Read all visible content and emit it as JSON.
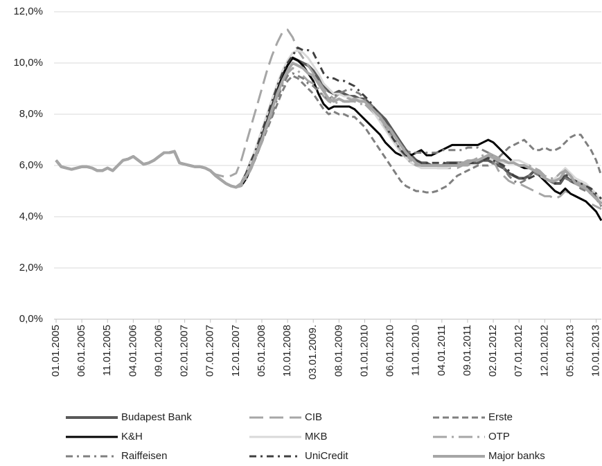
{
  "chart_data": {
    "type": "line",
    "categories": [
      "01.01.2005",
      null,
      null,
      null,
      null,
      "06.01.2005",
      null,
      null,
      null,
      null,
      "11.01.2005",
      null,
      null,
      null,
      null,
      "04.01.2006",
      null,
      null,
      null,
      null,
      "09.01.2006",
      null,
      null,
      null,
      null,
      "02.01.2007",
      null,
      null,
      null,
      null,
      "07.01.2007",
      null,
      null,
      null,
      null,
      "12.01.2007",
      null,
      null,
      null,
      null,
      "05.01.2008",
      null,
      null,
      null,
      null,
      "10.01.2008",
      null,
      null,
      null,
      null,
      "03.01.2009.",
      null,
      null,
      null,
      null,
      "08.01.2009",
      null,
      null,
      null,
      null,
      "01.01.2010",
      null,
      null,
      null,
      null,
      "06.01.2010",
      null,
      null,
      null,
      null,
      "11.01.2010",
      null,
      null,
      null,
      null,
      "04.01.2011",
      null,
      null,
      null,
      null,
      "09.01.2011",
      null,
      null,
      null,
      null,
      "02.01.2012",
      null,
      null,
      null,
      null,
      "07.01.2012",
      null,
      null,
      null,
      null,
      "12.01.2012",
      null,
      null,
      null,
      null,
      "05.01.2013",
      null,
      null,
      null,
      null,
      "10.01.2013",
      null
    ],
    "ylim": [
      0,
      12
    ],
    "yticks": [
      {
        "value": 0,
        "label": "0,0%"
      },
      {
        "value": 2,
        "label": "2,0%"
      },
      {
        "value": 4,
        "label": "4,0%"
      },
      {
        "value": 6,
        "label": "6,0%"
      },
      {
        "value": 8,
        "label": "8,0%"
      },
      {
        "value": 10,
        "label": "10,0%"
      },
      {
        "value": 12,
        "label": "12,0%"
      }
    ],
    "grid": true,
    "legend": "bottom",
    "series": [
      {
        "name": "Budapest Bank",
        "color": "#595959",
        "dash": "solid",
        "width": 4,
        "values": [
          6.2,
          5.95,
          5.9,
          5.85,
          5.9,
          5.95,
          5.95,
          5.9,
          5.8,
          5.8,
          5.9,
          5.8,
          6.0,
          6.2,
          6.25,
          6.35,
          6.2,
          6.05,
          6.1,
          6.2,
          6.35,
          6.5,
          6.5,
          6.55,
          6.1,
          6.05,
          6.0,
          5.95,
          5.95,
          5.9,
          5.8,
          5.6,
          5.45,
          5.3,
          5.2,
          5.15,
          5.3,
          5.7,
          6.2,
          6.7,
          7.3,
          7.9,
          8.5,
          9.1,
          9.6,
          10.0,
          10.2,
          10.1,
          10.0,
          9.9,
          9.7,
          9.4,
          9.1,
          8.9,
          8.8,
          8.9,
          8.8,
          8.7,
          8.7,
          8.6,
          8.6,
          8.4,
          8.2,
          8.0,
          7.8,
          7.5,
          7.2,
          6.9,
          6.6,
          6.4,
          6.2,
          6.1,
          6.1,
          6.0,
          6.0,
          6.0,
          6.1,
          6.1,
          6.1,
          6.1,
          6.1,
          6.1,
          6.1,
          6.2,
          6.2,
          6.1,
          6.0,
          5.9,
          5.7,
          5.6,
          5.5,
          5.5,
          5.6,
          5.8,
          5.7,
          5.5,
          5.4,
          5.3,
          5.3,
          5.6,
          5.4,
          5.3,
          5.2,
          5.1,
          5.0,
          4.8,
          4.5
        ]
      },
      {
        "name": "CIB",
        "color": "#a6a6a6",
        "dash": "long-dash",
        "width": 3,
        "values": [
          6.2,
          5.95,
          5.9,
          5.85,
          5.9,
          5.95,
          5.95,
          5.9,
          5.8,
          5.8,
          5.9,
          5.8,
          6.0,
          6.2,
          6.25,
          6.35,
          6.2,
          6.05,
          6.1,
          6.2,
          6.35,
          6.5,
          6.5,
          6.55,
          6.1,
          6.05,
          6.0,
          5.95,
          5.95,
          5.9,
          5.8,
          5.65,
          5.6,
          5.55,
          5.6,
          5.7,
          6.2,
          6.9,
          7.6,
          8.3,
          9.0,
          9.7,
          10.3,
          10.8,
          11.2,
          11.3,
          11.0,
          10.5,
          10.2,
          9.9,
          9.6,
          9.3,
          9.0,
          8.8,
          8.6,
          8.8,
          8.7,
          8.6,
          8.6,
          8.5,
          8.4,
          8.2,
          8.0,
          7.8,
          7.5,
          7.2,
          6.9,
          6.6,
          6.4,
          6.2,
          6.1,
          6.0,
          6.0,
          6.0,
          5.9,
          5.9,
          5.9,
          5.9,
          5.9,
          6.0,
          6.0,
          6.1,
          6.2,
          6.3,
          6.4,
          6.2,
          5.8,
          5.6,
          5.4,
          5.3,
          5.3,
          5.2,
          5.1,
          5.0,
          4.9,
          4.8,
          4.8,
          4.7,
          4.8,
          5.0,
          4.9,
          4.8,
          4.7,
          4.6,
          4.5,
          4.4,
          4.3
        ]
      },
      {
        "name": "Erste",
        "color": "#7f7f7f",
        "dash": "dash",
        "width": 3,
        "values": [
          6.2,
          5.95,
          5.9,
          5.85,
          5.9,
          5.95,
          5.95,
          5.9,
          5.8,
          5.8,
          5.9,
          5.8,
          6.0,
          6.2,
          6.25,
          6.35,
          6.2,
          6.05,
          6.1,
          6.2,
          6.35,
          6.5,
          6.5,
          6.55,
          6.1,
          6.05,
          6.0,
          5.95,
          5.95,
          5.9,
          5.8,
          5.6,
          5.45,
          5.3,
          5.2,
          5.15,
          5.2,
          5.5,
          5.9,
          6.4,
          6.9,
          7.4,
          7.9,
          8.4,
          8.9,
          9.3,
          9.5,
          9.4,
          9.2,
          9.0,
          8.8,
          8.5,
          8.2,
          8.0,
          8.1,
          8.0,
          8.0,
          7.9,
          7.9,
          7.7,
          7.5,
          7.2,
          6.9,
          6.6,
          6.3,
          6.0,
          5.7,
          5.4,
          5.2,
          5.1,
          5.0,
          5.0,
          4.95,
          4.95,
          5.0,
          5.1,
          5.2,
          5.4,
          5.6,
          5.7,
          5.8,
          5.9,
          6.0,
          6.0,
          6.0,
          6.1,
          6.3,
          6.5,
          6.7,
          6.8,
          6.9,
          7.0,
          6.8,
          6.6,
          6.6,
          6.7,
          6.6,
          6.6,
          6.7,
          6.9,
          7.1,
          7.2,
          7.2,
          6.9,
          6.6,
          6.2,
          5.6
        ]
      },
      {
        "name": "K&H",
        "color": "#000000",
        "dash": "solid",
        "width": 3,
        "values": [
          6.2,
          5.95,
          5.9,
          5.85,
          5.9,
          5.95,
          5.95,
          5.9,
          5.8,
          5.8,
          5.9,
          5.8,
          6.0,
          6.2,
          6.25,
          6.35,
          6.2,
          6.05,
          6.1,
          6.2,
          6.35,
          6.5,
          6.5,
          6.55,
          6.1,
          6.05,
          6.0,
          5.95,
          5.95,
          5.9,
          5.8,
          5.6,
          5.45,
          5.3,
          5.2,
          5.15,
          5.2,
          5.5,
          6.0,
          6.5,
          7.1,
          7.7,
          8.3,
          8.9,
          9.5,
          9.9,
          10.2,
          10.1,
          9.9,
          9.6,
          9.3,
          8.8,
          8.4,
          8.2,
          8.3,
          8.3,
          8.3,
          8.3,
          8.2,
          8.0,
          7.8,
          7.6,
          7.4,
          7.2,
          6.9,
          6.7,
          6.5,
          6.4,
          6.4,
          6.4,
          6.5,
          6.6,
          6.4,
          6.4,
          6.5,
          6.6,
          6.7,
          6.8,
          6.8,
          6.8,
          6.8,
          6.8,
          6.8,
          6.9,
          7.0,
          6.9,
          6.7,
          6.5,
          6.3,
          6.1,
          6.0,
          5.9,
          5.9,
          5.8,
          5.6,
          5.4,
          5.2,
          5.0,
          4.9,
          5.1,
          4.9,
          4.8,
          4.7,
          4.6,
          4.4,
          4.2,
          3.85
        ]
      },
      {
        "name": "MKB",
        "color": "#d9d9d9",
        "dash": "solid",
        "width": 3,
        "values": [
          6.2,
          5.95,
          5.9,
          5.85,
          5.9,
          5.95,
          5.95,
          5.9,
          5.8,
          5.8,
          5.9,
          5.8,
          6.0,
          6.2,
          6.25,
          6.35,
          6.2,
          6.05,
          6.1,
          6.2,
          6.35,
          6.5,
          6.5,
          6.55,
          6.1,
          6.05,
          6.0,
          5.95,
          5.95,
          5.9,
          5.8,
          5.6,
          5.45,
          5.3,
          5.2,
          5.15,
          5.3,
          5.7,
          6.2,
          6.8,
          7.4,
          8.0,
          8.6,
          9.2,
          9.7,
          10.1,
          10.4,
          10.5,
          10.4,
          10.2,
          9.9,
          9.6,
          9.2,
          9.0,
          8.8,
          8.8,
          8.7,
          8.7,
          8.6,
          8.6,
          8.5,
          8.3,
          8.0,
          7.7,
          7.4,
          7.1,
          6.8,
          6.5,
          6.3,
          6.1,
          6.0,
          5.9,
          5.9,
          5.9,
          5.9,
          5.9,
          5.9,
          6.0,
          6.0,
          6.1,
          6.1,
          6.2,
          6.2,
          6.3,
          6.3,
          6.2,
          6.1,
          6.1,
          6.1,
          6.2,
          6.2,
          6.1,
          6.0,
          5.8,
          5.6,
          5.5,
          5.4,
          5.5,
          5.7,
          5.9,
          5.7,
          5.5,
          5.4,
          5.3,
          5.1,
          4.9,
          4.6
        ]
      },
      {
        "name": "OTP",
        "color": "#a6a6a6",
        "dash": "long-dash-dot",
        "width": 3,
        "values": [
          6.2,
          5.95,
          5.9,
          5.85,
          5.9,
          5.95,
          5.95,
          5.9,
          5.8,
          5.8,
          5.9,
          5.8,
          6.0,
          6.2,
          6.25,
          6.35,
          6.2,
          6.05,
          6.1,
          6.2,
          6.35,
          6.5,
          6.5,
          6.55,
          6.1,
          6.05,
          6.0,
          5.95,
          5.95,
          5.9,
          5.8,
          5.6,
          5.45,
          5.3,
          5.2,
          5.15,
          5.2,
          5.5,
          5.9,
          6.4,
          6.9,
          7.5,
          8.1,
          8.7,
          9.2,
          9.6,
          9.8,
          9.7,
          9.5,
          9.3,
          9.2,
          9.0,
          8.7,
          8.5,
          8.4,
          8.5,
          8.5,
          8.5,
          8.5,
          8.4,
          8.4,
          8.3,
          8.1,
          7.8,
          7.5,
          7.2,
          6.9,
          6.6,
          6.3,
          6.1,
          6.0,
          6.0,
          6.0,
          6.0,
          6.0,
          6.0,
          6.0,
          6.0,
          6.1,
          6.1,
          6.2,
          6.2,
          6.3,
          6.4,
          6.5,
          6.4,
          6.3,
          6.2,
          6.1,
          6.1,
          6.0,
          6.0,
          6.0,
          5.9,
          5.8,
          5.6,
          5.5,
          5.5,
          5.7,
          5.8,
          5.6,
          5.4,
          5.3,
          5.2,
          5.0,
          4.8,
          4.4
        ]
      },
      {
        "name": "Raiffeisen",
        "color": "#7f7f7f",
        "dash": "dash-dot",
        "width": 3,
        "values": [
          6.2,
          5.95,
          5.9,
          5.85,
          5.9,
          5.95,
          5.95,
          5.9,
          5.8,
          5.8,
          5.9,
          5.8,
          6.0,
          6.2,
          6.25,
          6.35,
          6.2,
          6.05,
          6.1,
          6.2,
          6.35,
          6.5,
          6.5,
          6.55,
          6.1,
          6.05,
          6.0,
          5.95,
          5.95,
          5.9,
          5.8,
          5.6,
          5.45,
          5.3,
          5.2,
          5.15,
          5.3,
          5.6,
          6.0,
          6.5,
          7.0,
          7.5,
          8.0,
          8.6,
          9.1,
          9.5,
          9.6,
          9.5,
          9.4,
          9.2,
          9.1,
          8.9,
          8.7,
          8.6,
          8.7,
          8.8,
          8.9,
          9.0,
          8.9,
          8.8,
          8.6,
          8.4,
          8.2,
          7.9,
          7.6,
          7.3,
          7.0,
          6.8,
          6.6,
          6.5,
          6.5,
          6.5,
          6.5,
          6.5,
          6.5,
          6.6,
          6.6,
          6.6,
          6.6,
          6.6,
          6.7,
          6.7,
          6.7,
          6.6,
          6.5,
          6.3,
          6.1,
          5.9,
          5.6,
          5.4,
          5.3,
          5.4,
          5.6,
          5.7,
          5.6,
          5.5,
          5.4,
          5.3,
          5.4,
          5.5,
          5.4,
          5.3,
          5.1,
          5.0,
          4.9,
          4.7,
          4.4
        ]
      },
      {
        "name": "UniCredit",
        "color": "#404040",
        "dash": "dash-dot",
        "width": 3,
        "values": [
          6.2,
          5.95,
          5.9,
          5.85,
          5.9,
          5.95,
          5.95,
          5.9,
          5.8,
          5.8,
          5.9,
          5.8,
          6.0,
          6.2,
          6.25,
          6.35,
          6.2,
          6.05,
          6.1,
          6.2,
          6.35,
          6.5,
          6.5,
          6.55,
          6.1,
          6.05,
          6.0,
          5.95,
          5.95,
          5.9,
          5.8,
          5.6,
          5.45,
          5.3,
          5.2,
          5.15,
          5.3,
          5.7,
          6.2,
          6.7,
          7.3,
          7.9,
          8.5,
          9.1,
          9.6,
          10.0,
          10.3,
          10.6,
          10.5,
          10.5,
          10.4,
          10.0,
          9.6,
          9.4,
          9.4,
          9.3,
          9.3,
          9.2,
          9.1,
          8.9,
          8.7,
          8.5,
          8.2,
          7.9,
          7.6,
          7.2,
          6.9,
          6.6,
          6.4,
          6.3,
          6.2,
          6.1,
          6.1,
          6.1,
          6.1,
          6.1,
          6.1,
          6.1,
          6.1,
          6.1,
          6.1,
          6.1,
          6.2,
          6.2,
          6.3,
          6.2,
          6.1,
          6.0,
          5.8,
          5.6,
          5.5,
          5.5,
          5.5,
          5.6,
          5.6,
          5.5,
          5.4,
          5.3,
          5.4,
          5.7,
          5.5,
          5.4,
          5.3,
          5.2,
          5.1,
          4.9,
          4.7
        ]
      },
      {
        "name": "Major banks",
        "color": "#a6a6a6",
        "dash": "solid",
        "width": 4,
        "values": [
          6.2,
          5.95,
          5.9,
          5.85,
          5.9,
          5.95,
          5.95,
          5.9,
          5.8,
          5.8,
          5.9,
          5.8,
          6.0,
          6.2,
          6.25,
          6.35,
          6.2,
          6.05,
          6.1,
          6.2,
          6.35,
          6.5,
          6.5,
          6.55,
          6.1,
          6.05,
          6.0,
          5.95,
          5.95,
          5.9,
          5.8,
          5.6,
          5.45,
          5.3,
          5.2,
          5.15,
          5.3,
          5.6,
          6.0,
          6.5,
          7.0,
          7.6,
          8.2,
          8.8,
          9.3,
          9.7,
          10.0,
          9.9,
          9.8,
          9.6,
          9.5,
          9.2,
          8.9,
          8.6,
          8.5,
          8.6,
          8.5,
          8.5,
          8.6,
          8.5,
          8.5,
          8.3,
          8.1,
          7.9,
          7.6,
          7.4,
          7.1,
          6.8,
          6.5,
          6.3,
          6.1,
          6.0,
          6.0,
          6.0,
          6.0,
          6.0,
          6.0,
          6.0,
          6.0,
          6.1,
          6.1,
          6.2,
          6.2,
          6.3,
          6.4,
          6.3,
          6.2,
          6.2,
          6.1,
          6.1,
          6.0,
          6.0,
          5.9,
          5.8,
          5.7,
          5.5,
          5.4,
          5.4,
          5.5,
          5.8,
          5.6,
          5.3,
          5.2,
          5.1,
          4.9,
          4.7,
          4.5
        ]
      }
    ]
  }
}
